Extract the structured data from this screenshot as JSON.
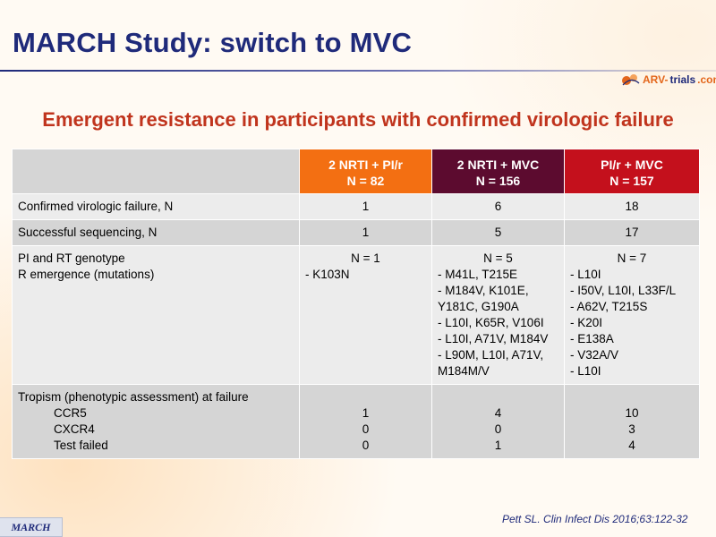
{
  "slide": {
    "title": "MARCH Study: switch to MVC",
    "subtitle": "Emergent resistance in participants with confirmed virologic failure",
    "logo": {
      "part_a": "ARV-",
      "part_b": "trials",
      "part_c": ".com",
      "icon": "arv-trials-logo-icon"
    },
    "footer_logo": "MARCH",
    "citation": "Pett SL. Clin Infect Dis 2016;63:122-32",
    "colors": {
      "title": "#1f2a7a",
      "subtitle": "#c0341d",
      "header_1": "#f36f12",
      "header_2": "#5c0b2f",
      "header_3": "#c4101c"
    }
  },
  "table": {
    "headers": [
      {
        "line1": "2 NRTI + PI/r",
        "line2": "N = 82"
      },
      {
        "line1": "2 NRTI + MVC",
        "line2": "N = 156"
      },
      {
        "line1": "PI/r + MVC",
        "line2": "N = 157"
      }
    ],
    "rows": {
      "cvf": {
        "label": "Confirmed virologic failure, N",
        "values": [
          "1",
          "6",
          "18"
        ]
      },
      "seq": {
        "label": "Successful sequencing, N",
        "values": [
          "1",
          "5",
          "17"
        ]
      },
      "genotype": {
        "label_line1": "PI and RT genotype",
        "label_line2": "R emergence (mutations)",
        "cols": [
          {
            "n": "N = 1",
            "items": [
              "- K103N"
            ]
          },
          {
            "n": "N = 5",
            "items": [
              "- M41L, T215E",
              "- M184V, K101E, Y181C, G190A",
              "- L10I, K65R, V106I",
              "- L10I, A71V, M184V",
              "- L90M, L10I, A71V, M184M/V"
            ]
          },
          {
            "n": "N = 7",
            "items": [
              "- L10I",
              "- I50V, L10I, L33F/L",
              "- A62V, T215S",
              "- K20I",
              "- E138A",
              "- V32A/V",
              "- L10I"
            ]
          }
        ]
      },
      "tropism": {
        "label": "Tropism (phenotypic assessment) at failure",
        "sub": [
          "CCR5",
          "CXCR4",
          "Test failed"
        ],
        "cols": [
          [
            "1",
            "0",
            "0"
          ],
          [
            "4",
            "0",
            "1"
          ],
          [
            "10",
            "3",
            "4"
          ]
        ]
      }
    }
  }
}
